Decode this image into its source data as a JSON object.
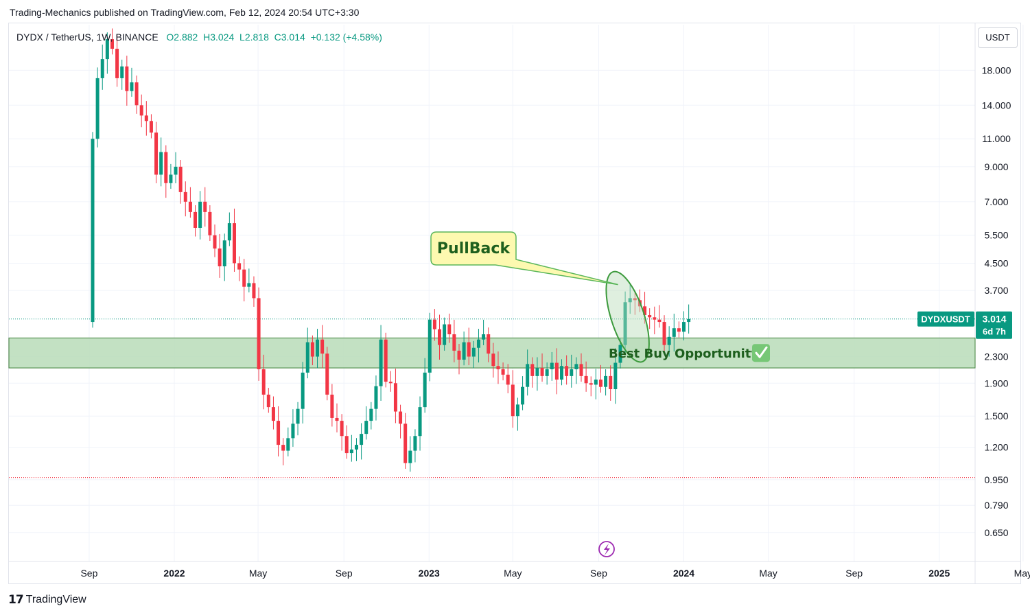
{
  "header": {
    "publisher_line": "Trading-Mechanics published on TradingView.com, Feb 12, 2024 20:54 UTC+3:30"
  },
  "legend": {
    "symbol": "DYDX / TetherUS, 1W, BINANCE",
    "open": "O2.882",
    "high": "H3.024",
    "low": "L2.818",
    "close": "C3.014",
    "change": "+0.132 (+4.58%)"
  },
  "currency_button": "USDT",
  "footer": {
    "brand": "TradingView"
  },
  "colors": {
    "up": "#089981",
    "down": "#f23645",
    "zone_fill": "#b9dcb8",
    "zone_border": "#3f7f3a",
    "ellipse": "#3c9a3c",
    "callout_bg": "#fdf9b0",
    "callout_border": "#5ab65a",
    "annotation_text": "#1e5f1e",
    "price_tag": "#089981",
    "dotted_line": "#f23645",
    "lightning": "#9c27b0"
  },
  "chart_data": {
    "type": "candlestick",
    "symbol_tag": "DYDXUSDT",
    "last_price": "3.014",
    "countdown": "6d 7h",
    "log_scale": true,
    "ylim": [
      0.56,
      24.0
    ],
    "y_ticks": [
      "18.000",
      "14.000",
      "11.000",
      "9.000",
      "7.000",
      "5.500",
      "4.500",
      "3.700",
      "2.300",
      "1.900",
      "1.500",
      "1.200",
      "0.950",
      "0.790",
      "0.650"
    ],
    "x_ticks": [
      {
        "label": "Sep",
        "date": "2021-09-01"
      },
      {
        "label": "2022",
        "date": "2022-01-01",
        "bold": true
      },
      {
        "label": "May",
        "date": "2022-05-01"
      },
      {
        "label": "Sep",
        "date": "2022-09-01"
      },
      {
        "label": "2023",
        "date": "2023-01-01",
        "bold": true
      },
      {
        "label": "May",
        "date": "2023-05-01"
      },
      {
        "label": "Sep",
        "date": "2023-09-01"
      },
      {
        "label": "2024",
        "date": "2024-01-01",
        "bold": true
      },
      {
        "label": "May",
        "date": "2024-05-01"
      },
      {
        "label": "Sep",
        "date": "2024-09-01"
      },
      {
        "label": "2025",
        "date": "2025-01-01",
        "bold": true
      },
      {
        "label": "May",
        "date": "2025-05-01"
      },
      {
        "label": "Sep",
        "date": "2025-09-01"
      }
    ],
    "first_candle_date": "2021-09-06",
    "close_first_open": 2.95,
    "closes": [
      11.0,
      17.0,
      19.5,
      22.5,
      21.0,
      17.0,
      18.5,
      15.5,
      16.5,
      14.0,
      13.0,
      12.5,
      11.5,
      8.5,
      10.0,
      8.0,
      8.5,
      9.0,
      7.5,
      7.0,
      6.5,
      5.8,
      7.0,
      6.5,
      5.5,
      5.0,
      4.4,
      5.3,
      6.0,
      4.5,
      4.3,
      3.8,
      3.9,
      3.5,
      2.1,
      1.75,
      1.6,
      1.45,
      1.22,
      1.17,
      1.28,
      1.42,
      1.58,
      2.05,
      2.55,
      2.3,
      2.6,
      2.35,
      1.75,
      1.48,
      1.45,
      1.3,
      1.15,
      1.18,
      1.22,
      1.32,
      1.45,
      1.58,
      1.86,
      2.6,
      1.92,
      1.9,
      1.55,
      1.42,
      1.07,
      1.17,
      1.3,
      1.6,
      2.05,
      3.0,
      2.8,
      2.5,
      2.9,
      2.7,
      2.4,
      2.25,
      2.55,
      2.3,
      2.45,
      2.6,
      2.7,
      2.35,
      2.15,
      2.1,
      2.02,
      1.88,
      1.5,
      1.63,
      1.85,
      2.18,
      2.0,
      2.12,
      2.0,
      2.1,
      2.2,
      1.95,
      2.15,
      2.0,
      2.1,
      2.18,
      2.0,
      1.9,
      1.88,
      1.95,
      1.85,
      2.0,
      1.82,
      2.2,
      2.5,
      3.4,
      3.5,
      3.45,
      3.3,
      3.1,
      3.05,
      3.0,
      2.95,
      2.5,
      2.65,
      2.82,
      2.75,
      2.95,
      3.014
    ],
    "support_zone": {
      "low": 2.12,
      "high": 2.63
    },
    "dotted_levels": [
      {
        "value": 3.014,
        "color": "price"
      },
      {
        "value": 0.965,
        "color": "red"
      }
    ],
    "annotations": {
      "callout_text": "PullBack",
      "zone_label": "Best Buy Opportunity",
      "zone_icon": "check-mark-icon",
      "ellipse_candles": [
        106,
        113
      ]
    }
  }
}
